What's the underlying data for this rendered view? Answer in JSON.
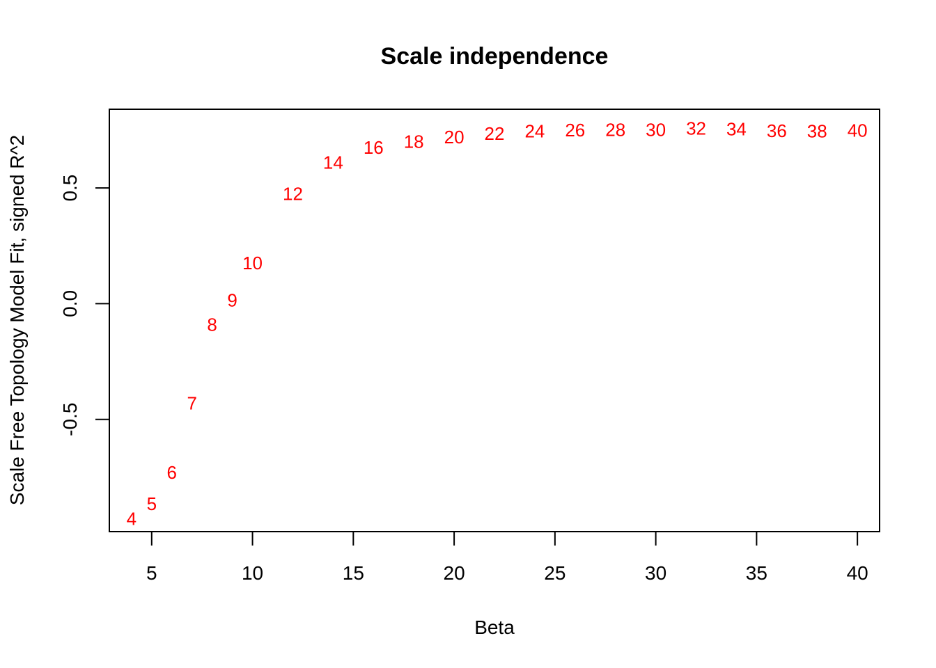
{
  "chart_data": {
    "type": "scatter",
    "title": "Scale independence",
    "xlabel": "Beta",
    "ylabel": "Scale Free Topology Model Fit, signed R^2",
    "xlim": [
      2.9,
      41.1
    ],
    "ylim": [
      -0.985,
      0.84
    ],
    "xticks": [
      5,
      10,
      15,
      20,
      25,
      30,
      35,
      40
    ],
    "xtick_labels": [
      "5",
      "10",
      "15",
      "20",
      "25",
      "30",
      "35",
      "40"
    ],
    "yticks": [
      -0.5,
      0.0,
      0.5
    ],
    "ytick_labels": [
      "-0.5",
      "0.0",
      "0.5"
    ],
    "point_color": "#ff0000",
    "grid": false,
    "points": [
      {
        "x": 4,
        "y": -0.93,
        "label": "4"
      },
      {
        "x": 5,
        "y": -0.865,
        "label": "5"
      },
      {
        "x": 6,
        "y": -0.73,
        "label": "6"
      },
      {
        "x": 7,
        "y": -0.43,
        "label": "7"
      },
      {
        "x": 8,
        "y": -0.09,
        "label": "8"
      },
      {
        "x": 9,
        "y": 0.015,
        "label": "9"
      },
      {
        "x": 10,
        "y": 0.175,
        "label": "10"
      },
      {
        "x": 12,
        "y": 0.475,
        "label": "12"
      },
      {
        "x": 14,
        "y": 0.61,
        "label": "14"
      },
      {
        "x": 16,
        "y": 0.675,
        "label": "16"
      },
      {
        "x": 18,
        "y": 0.7,
        "label": "18"
      },
      {
        "x": 20,
        "y": 0.72,
        "label": "20"
      },
      {
        "x": 22,
        "y": 0.735,
        "label": "22"
      },
      {
        "x": 24,
        "y": 0.745,
        "label": "24"
      },
      {
        "x": 26,
        "y": 0.75,
        "label": "26"
      },
      {
        "x": 28,
        "y": 0.752,
        "label": "28"
      },
      {
        "x": 30,
        "y": 0.751,
        "label": "30"
      },
      {
        "x": 32,
        "y": 0.757,
        "label": "32"
      },
      {
        "x": 34,
        "y": 0.755,
        "label": "34"
      },
      {
        "x": 36,
        "y": 0.747,
        "label": "36"
      },
      {
        "x": 38,
        "y": 0.745,
        "label": "38"
      },
      {
        "x": 40,
        "y": 0.748,
        "label": "40"
      }
    ]
  }
}
